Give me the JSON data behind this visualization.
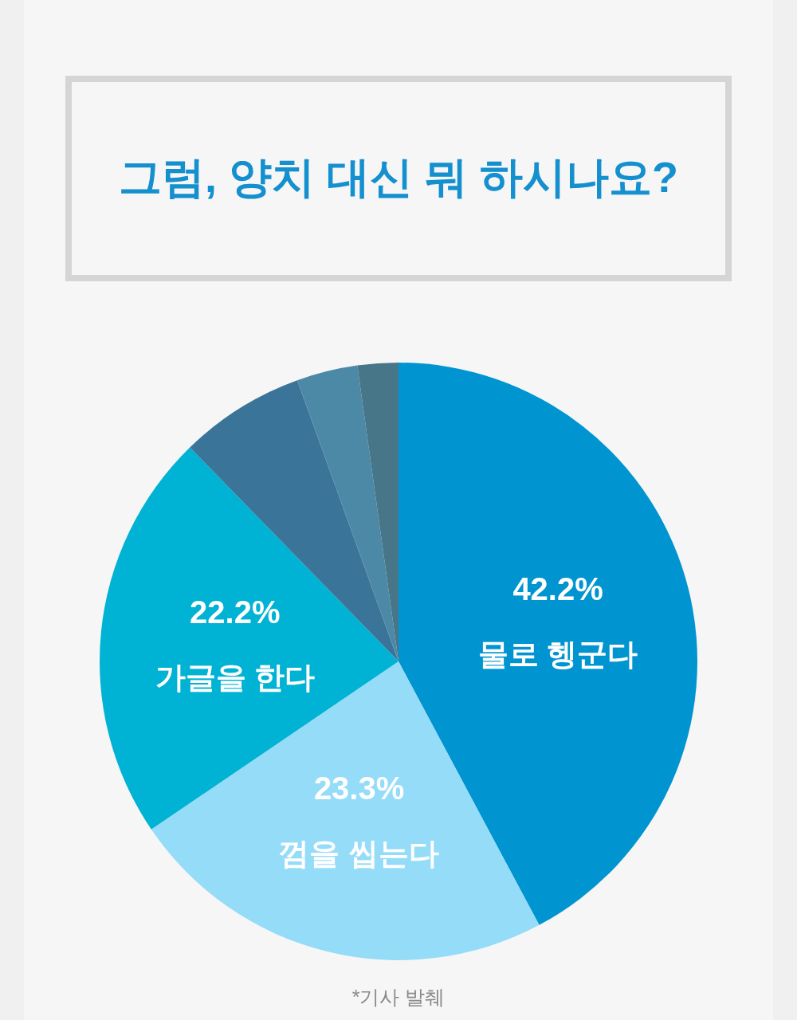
{
  "chart_data": {
    "type": "pie",
    "title": "그럼, 양치 대신 뭐 하시나요?",
    "categories": [
      "물로 헹군다",
      "껌을 씹는다",
      "가글을 한다",
      null,
      null,
      null
    ],
    "values": [
      42.2,
      23.3,
      22.2,
      6.8,
      3.3,
      2.2
    ],
    "value_labels": [
      "42.2%",
      "23.3%",
      "22.2%",
      null,
      null,
      null
    ],
    "colors": [
      "#0095d0",
      "#94dcf8",
      "#00b2d3",
      "#3a7599",
      "#4c89a6",
      "#477688"
    ],
    "annotations": [
      "*기사 발췌"
    ]
  }
}
